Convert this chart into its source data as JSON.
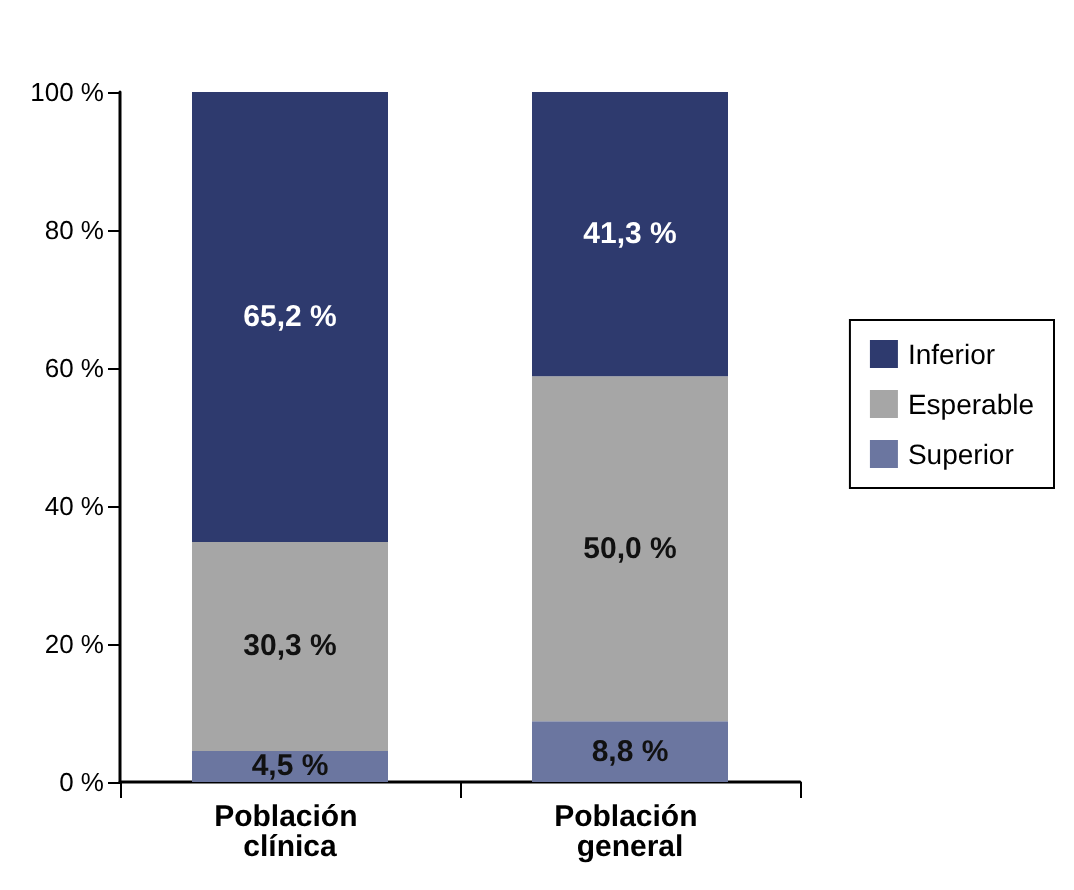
{
  "chart_data": {
    "type": "bar",
    "stacked": true,
    "categories": [
      "Población clínica",
      "Población general"
    ],
    "series": [
      {
        "name": "Superior",
        "color": "#6b76a0",
        "values": [
          4.5,
          8.8
        ],
        "value_labels": [
          "4,5 %",
          "8,8 %"
        ]
      },
      {
        "name": "Esperable",
        "color": "#a6a6a6",
        "values": [
          30.3,
          50.0
        ],
        "value_labels": [
          "30,3 %",
          "50,0 %"
        ]
      },
      {
        "name": "Inferior",
        "color": "#2e3a6e",
        "values": [
          65.2,
          41.3
        ],
        "value_labels": [
          "65,2 %",
          "41,3 %"
        ]
      }
    ],
    "ylim": [
      0,
      100
    ],
    "yticks": [
      {
        "value": 0,
        "label": "0 %"
      },
      {
        "value": 20,
        "label": "20 %"
      },
      {
        "value": 40,
        "label": "40 %"
      },
      {
        "value": 60,
        "label": "60 %"
      },
      {
        "value": 80,
        "label": "80 %"
      },
      {
        "value": 100,
        "label": "100 %"
      }
    ],
    "grid": false,
    "legend": "right"
  }
}
